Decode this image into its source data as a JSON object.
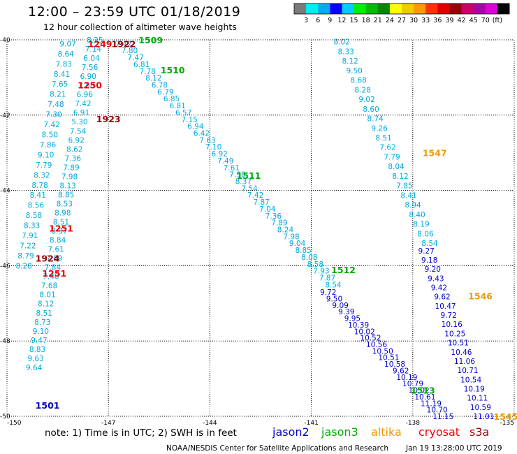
{
  "header": {
    "title": "12:00 – 23:59 UTC 01/18/2019",
    "subtitle": "12 hour collection of altimeter wave heights"
  },
  "colorbar": {
    "colors": [
      "#7a7a7a",
      "#00eeee",
      "#00aeee",
      "#0000ff",
      "#00ccff",
      "#00ee00",
      "#00bb00",
      "#008800",
      "#ffff00",
      "#eecc00",
      "#ff9900",
      "#ff3300",
      "#dd0000",
      "#990000",
      "#cc0066",
      "#aa00aa",
      "#dd00dd",
      "#000000"
    ],
    "labels": [
      "3",
      "6",
      "9",
      "12",
      "15",
      "18",
      "21",
      "24",
      "27",
      "30",
      "33",
      "36",
      "39",
      "42",
      "45",
      "70",
      "(ft)"
    ]
  },
  "axes": {
    "lat_labels": [
      "-40",
      "-42",
      "-44",
      "-46",
      "-48",
      "-50"
    ],
    "lon_labels": [
      "-150",
      "-147",
      "-144",
      "-141",
      "-138",
      "-135"
    ]
  },
  "footer": {
    "note": "note:  1) Time is in UTC;  2) SWH is in feet",
    "satellites": [
      {
        "name": "jason2",
        "color": "#0000cc"
      },
      {
        "name": "jason3",
        "color": "#00aa00"
      },
      {
        "name": "altika",
        "color": "#ee9900"
      },
      {
        "name": "cryosat",
        "color": "#ee0000"
      },
      {
        "name": "s3a",
        "color": "#990000"
      }
    ],
    "credit": "NOAA/NESDIS Center for Satellite Applications and Research",
    "timestamp": "Jan 19 13:28:00 UTC 2019"
  },
  "colors": {
    "cyan": "#00aadd",
    "blue": "#0000cc",
    "green": "#00aa00",
    "orange": "#ee9900",
    "red": "#ee0000",
    "dark": "#990000"
  },
  "chart_data": {
    "type": "map",
    "xlim": [
      -150,
      -135
    ],
    "ylim": [
      -50,
      -40
    ],
    "pass_labels": [
      {
        "text": "1249",
        "color": "red",
        "lon": -147.25,
        "lat": -40.1
      },
      {
        "text": "1922",
        "color": "dark",
        "lon": -146.55,
        "lat": -40.1
      },
      {
        "text": "1509",
        "color": "green",
        "lon": -145.75,
        "lat": -40.0
      },
      {
        "text": "1510",
        "color": "green",
        "lon": -145.1,
        "lat": -40.8
      },
      {
        "text": "1250",
        "color": "red",
        "lon": -147.55,
        "lat": -41.2
      },
      {
        "text": "1923",
        "color": "dark",
        "lon": -147.0,
        "lat": -42.1
      },
      {
        "text": "1511",
        "color": "green",
        "lon": -142.85,
        "lat": -43.6
      },
      {
        "text": "1547",
        "color": "orange",
        "lon": -137.35,
        "lat": -43.0
      },
      {
        "text": "1251",
        "color": "red",
        "lon": -148.4,
        "lat": -45.0
      },
      {
        "text": "1924",
        "color": "dark",
        "lon": -148.8,
        "lat": -45.8
      },
      {
        "text": "1251",
        "color": "red",
        "lon": -148.6,
        "lat": -46.2
      },
      {
        "text": "1512",
        "color": "green",
        "lon": -140.05,
        "lat": -46.1
      },
      {
        "text": "1546",
        "color": "orange",
        "lon": -136.0,
        "lat": -46.8
      },
      {
        "text": "1513",
        "color": "green",
        "lon": -137.7,
        "lat": -49.3
      },
      {
        "text": "1501",
        "color": "blue",
        "lon": -148.8,
        "lat": -49.7
      },
      {
        "text": "1545",
        "color": "orange",
        "lon": -135.25,
        "lat": -50.0
      }
    ],
    "tracks": [
      {
        "name": "cryosat-1249-1251",
        "color": "cyan",
        "start_lon": -147.4,
        "start_lat": -40.0,
        "end_lon": -149.2,
        "end_lat": -48.7,
        "values": [
          "8.25",
          "7.14",
          "6.04",
          "7.56",
          "6.90",
          "7.88",
          "6.96",
          "7.42",
          "6.91",
          "5.30",
          "7.54",
          "6.92",
          "8.62",
          "7.36",
          "7.89",
          "7.98",
          "8.13",
          "8.85",
          "8.53",
          "8.98",
          "8.51",
          "8.37",
          "8.84",
          "7.61",
          "7.89",
          "7.84",
          "7.40",
          "7.68",
          "8.01",
          "8.12",
          "8.51",
          "8.73",
          "9.10",
          "9.47",
          "8.83",
          "9.63",
          "9.64"
        ]
      },
      {
        "name": "cryosat-1249-left",
        "color": "cyan",
        "start_lon": -148.2,
        "start_lat": -40.1,
        "end_lon": -149.5,
        "end_lat": -46.0,
        "values": [
          "9.07",
          "8.64",
          "7.83",
          "8.41",
          "7.65",
          "8.21",
          "7.48",
          "7.30",
          "7.42",
          "8.50",
          "7.86",
          "9.10",
          "7.79",
          "8.32",
          "8.78",
          "8.41",
          "8.56",
          "8.58",
          "8.33",
          "7.91",
          "7.22",
          "8.79",
          "8.28"
        ]
      },
      {
        "name": "jason3-1509-1513",
        "color": "cyan",
        "start_lon": -146.55,
        "start_lat": -40.1,
        "end_lon": -140.35,
        "end_lat": -46.5,
        "values": [
          "7.42",
          "7.80",
          "7.47",
          "6.81",
          "7.78",
          "8.12",
          "6.78",
          "6.79",
          "6.85",
          "6.81",
          "6.57",
          "7.15",
          "6.94",
          "6.42",
          "7.63",
          "7.10",
          "6.92",
          "7.49",
          "7.61",
          "7.98",
          "8.37",
          "7.54",
          "7.42",
          "7.87",
          "7.04",
          "7.36",
          "7.89",
          "8.24",
          "7.98",
          "9.04",
          "8.85",
          "8.08",
          "8.58",
          "7.93",
          "7.87",
          "8.54"
        ]
      },
      {
        "name": "jason3-lower",
        "color": "blue",
        "start_lon": -140.5,
        "start_lat": -46.7,
        "end_lon": -137.1,
        "end_lat": -50.0,
        "values": [
          "9.72",
          "9.50",
          "9.09",
          "9.39",
          "9.95",
          "10.39",
          "10.02",
          "10.52",
          "10.56",
          "10.50",
          "10.51",
          "10.58",
          "9.62",
          "10.19",
          "10.79",
          "10.02",
          "10.61",
          "11.19",
          "10.70",
          "11.15"
        ]
      },
      {
        "name": "altika-1547-1545",
        "color": "cyan",
        "start_lon": -140.1,
        "start_lat": -40.05,
        "end_lon": -137.5,
        "end_lat": -45.4,
        "values": [
          "8.02",
          "8.33",
          "8.12",
          "9.50",
          "8.68",
          "8.28",
          "9.02",
          "8.60",
          "8.74",
          "9.26",
          "8.51",
          "7.62",
          "7.79",
          "8.04",
          "8.12",
          "7.85",
          "8.41",
          "8.94",
          "8.40",
          "8.19",
          "8.06",
          "8.54"
        ]
      },
      {
        "name": "altika-lower",
        "color": "blue",
        "start_lon": -137.6,
        "start_lat": -45.6,
        "end_lon": -135.9,
        "end_lat": -50.0,
        "values": [
          "9.27",
          "9.18",
          "9.20",
          "9.43",
          "9.42",
          "9.62",
          "10.47",
          "9.72",
          "10.16",
          "10.25",
          "10.51",
          "10.46",
          "11.06",
          "10.71",
          "10.54",
          "10.19",
          "10.11",
          "10.59",
          "11.01"
        ]
      }
    ]
  }
}
